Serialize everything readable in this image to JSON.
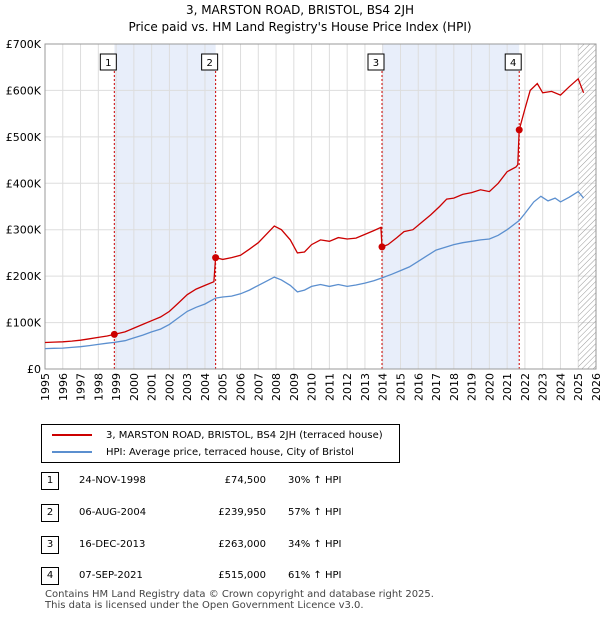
{
  "title_line1": "3, MARSTON ROAD, BRISTOL, BS4 2JH",
  "title_line2": "Price paid vs. HM Land Registry's House Price Index (HPI)",
  "colors": {
    "property": "#cc0000",
    "hpi": "#5b8fcf",
    "band": "#e8eefa",
    "grid": "#dddddd"
  },
  "chart_data": {
    "type": "line",
    "title": "Price paid vs. HM Land Registry's House Price Index (HPI)",
    "xlabel": "",
    "ylabel": "",
    "xlim": [
      1995,
      2026
    ],
    "ylim": [
      0,
      700000
    ],
    "yticks": [
      {
        "value": 0,
        "label": "£0"
      },
      {
        "value": 100000,
        "label": "£100K"
      },
      {
        "value": 200000,
        "label": "£200K"
      },
      {
        "value": 300000,
        "label": "£300K"
      },
      {
        "value": 400000,
        "label": "£400K"
      },
      {
        "value": 500000,
        "label": "£500K"
      },
      {
        "value": 600000,
        "label": "£600K"
      },
      {
        "value": 700000,
        "label": "£700K"
      }
    ],
    "xticks": [
      1995,
      1996,
      1997,
      1998,
      1999,
      2000,
      2001,
      2002,
      2003,
      2004,
      2005,
      2006,
      2007,
      2008,
      2009,
      2010,
      2011,
      2012,
      2013,
      2014,
      2015,
      2016,
      2017,
      2018,
      2019,
      2020,
      2021,
      2022,
      2023,
      2024,
      2025,
      2026
    ],
    "shaded_ranges": [
      [
        1998.9,
        2004.6
      ],
      [
        2013.96,
        2021.68
      ]
    ],
    "hatched_from": 2025.0,
    "series": [
      {
        "name": "3, MARSTON ROAD, BRISTOL, BS4 2JH (terraced house)",
        "color": "#cc0000",
        "points": [
          [
            1995.0,
            57000
          ],
          [
            1995.5,
            58000
          ],
          [
            1996.0,
            58500
          ],
          [
            1996.5,
            60000
          ],
          [
            1997.0,
            62000
          ],
          [
            1997.5,
            65000
          ],
          [
            1998.0,
            68000
          ],
          [
            1998.5,
            71000
          ],
          [
            1998.9,
            74500
          ],
          [
            1999.5,
            80000
          ],
          [
            2000.0,
            88000
          ],
          [
            2000.5,
            96000
          ],
          [
            2001.0,
            104000
          ],
          [
            2001.5,
            112000
          ],
          [
            2002.0,
            124000
          ],
          [
            2002.5,
            142000
          ],
          [
            2003.0,
            160000
          ],
          [
            2003.5,
            172000
          ],
          [
            2004.0,
            180000
          ],
          [
            2004.5,
            188000
          ],
          [
            2004.6,
            239950
          ],
          [
            2005.0,
            236000
          ],
          [
            2005.5,
            240000
          ],
          [
            2006.0,
            245000
          ],
          [
            2006.5,
            258000
          ],
          [
            2007.0,
            272000
          ],
          [
            2007.5,
            292000
          ],
          [
            2007.9,
            308000
          ],
          [
            2008.3,
            300000
          ],
          [
            2008.8,
            278000
          ],
          [
            2009.2,
            250000
          ],
          [
            2009.6,
            252000
          ],
          [
            2010.0,
            268000
          ],
          [
            2010.5,
            278000
          ],
          [
            2011.0,
            275000
          ],
          [
            2011.5,
            283000
          ],
          [
            2012.0,
            280000
          ],
          [
            2012.5,
            282000
          ],
          [
            2013.0,
            290000
          ],
          [
            2013.5,
            298000
          ],
          [
            2013.9,
            305000
          ],
          [
            2013.96,
            263000
          ],
          [
            2014.3,
            268000
          ],
          [
            2014.8,
            283000
          ],
          [
            2015.2,
            296000
          ],
          [
            2015.7,
            300000
          ],
          [
            2016.2,
            316000
          ],
          [
            2016.7,
            332000
          ],
          [
            2017.2,
            350000
          ],
          [
            2017.6,
            366000
          ],
          [
            2018.0,
            368000
          ],
          [
            2018.5,
            376000
          ],
          [
            2019.0,
            380000
          ],
          [
            2019.5,
            386000
          ],
          [
            2020.0,
            382000
          ],
          [
            2020.5,
            400000
          ],
          [
            2021.0,
            425000
          ],
          [
            2021.5,
            435000
          ],
          [
            2021.6,
            440000
          ],
          [
            2021.68,
            515000
          ],
          [
            2022.0,
            560000
          ],
          [
            2022.3,
            600000
          ],
          [
            2022.7,
            615000
          ],
          [
            2023.0,
            595000
          ],
          [
            2023.5,
            598000
          ],
          [
            2024.0,
            590000
          ],
          [
            2024.5,
            608000
          ],
          [
            2025.0,
            625000
          ],
          [
            2025.3,
            595000
          ]
        ]
      },
      {
        "name": "HPI: Average price, terraced house, City of Bristol",
        "color": "#5b8fcf",
        "points": [
          [
            1995.0,
            44000
          ],
          [
            1995.5,
            44500
          ],
          [
            1996.0,
            45000
          ],
          [
            1996.5,
            46500
          ],
          [
            1997.0,
            48000
          ],
          [
            1997.5,
            50500
          ],
          [
            1998.0,
            53000
          ],
          [
            1998.5,
            55500
          ],
          [
            1998.9,
            57300
          ],
          [
            1999.5,
            61000
          ],
          [
            2000.0,
            67000
          ],
          [
            2000.5,
            73000
          ],
          [
            2001.0,
            80000
          ],
          [
            2001.5,
            86000
          ],
          [
            2002.0,
            96000
          ],
          [
            2002.5,
            110000
          ],
          [
            2003.0,
            124000
          ],
          [
            2003.5,
            133000
          ],
          [
            2004.0,
            140000
          ],
          [
            2004.6,
            152800
          ],
          [
            2005.0,
            155000
          ],
          [
            2005.5,
            157000
          ],
          [
            2006.0,
            162000
          ],
          [
            2006.5,
            170000
          ],
          [
            2007.0,
            180000
          ],
          [
            2007.5,
            190000
          ],
          [
            2007.9,
            198000
          ],
          [
            2008.3,
            192000
          ],
          [
            2008.8,
            180000
          ],
          [
            2009.2,
            166000
          ],
          [
            2009.6,
            170000
          ],
          [
            2010.0,
            178000
          ],
          [
            2010.5,
            182000
          ],
          [
            2011.0,
            178000
          ],
          [
            2011.5,
            182000
          ],
          [
            2012.0,
            178000
          ],
          [
            2012.5,
            181000
          ],
          [
            2013.0,
            185000
          ],
          [
            2013.5,
            190000
          ],
          [
            2013.96,
            196300
          ],
          [
            2014.5,
            204000
          ],
          [
            2015.0,
            212000
          ],
          [
            2015.5,
            220000
          ],
          [
            2016.0,
            232000
          ],
          [
            2016.5,
            244000
          ],
          [
            2017.0,
            256000
          ],
          [
            2017.5,
            262000
          ],
          [
            2018.0,
            268000
          ],
          [
            2018.5,
            272000
          ],
          [
            2019.0,
            275000
          ],
          [
            2019.5,
            278000
          ],
          [
            2020.0,
            280000
          ],
          [
            2020.5,
            288000
          ],
          [
            2021.0,
            300000
          ],
          [
            2021.68,
            319900
          ],
          [
            2022.0,
            335000
          ],
          [
            2022.5,
            360000
          ],
          [
            2022.9,
            372000
          ],
          [
            2023.3,
            362000
          ],
          [
            2023.7,
            368000
          ],
          [
            2024.0,
            360000
          ],
          [
            2024.5,
            370000
          ],
          [
            2025.0,
            382000
          ],
          [
            2025.3,
            368000
          ]
        ]
      }
    ],
    "sales": [
      {
        "num": "1",
        "year": 1998.9,
        "price": 74500
      },
      {
        "num": "2",
        "year": 2004.6,
        "price": 239950
      },
      {
        "num": "3",
        "year": 2013.96,
        "price": 263000
      },
      {
        "num": "4",
        "year": 2021.68,
        "price": 515000
      }
    ]
  },
  "legend": [
    {
      "label": "3, MARSTON ROAD, BRISTOL, BS4 2JH (terraced house)",
      "color": "#cc0000"
    },
    {
      "label": "HPI: Average price, terraced house, City of Bristol",
      "color": "#5b8fcf"
    }
  ],
  "transactions": [
    {
      "num": "1",
      "date": "24-NOV-1998",
      "price": "£74,500",
      "hpi": "30% ↑ HPI"
    },
    {
      "num": "2",
      "date": "06-AUG-2004",
      "price": "£239,950",
      "hpi": "57% ↑ HPI"
    },
    {
      "num": "3",
      "date": "16-DEC-2013",
      "price": "£263,000",
      "hpi": "34% ↑ HPI"
    },
    {
      "num": "4",
      "date": "07-SEP-2021",
      "price": "£515,000",
      "hpi": "61% ↑ HPI"
    }
  ],
  "footer_line1": "Contains HM Land Registry data © Crown copyright and database right 2025.",
  "footer_line2": "This data is licensed under the Open Government Licence v3.0."
}
